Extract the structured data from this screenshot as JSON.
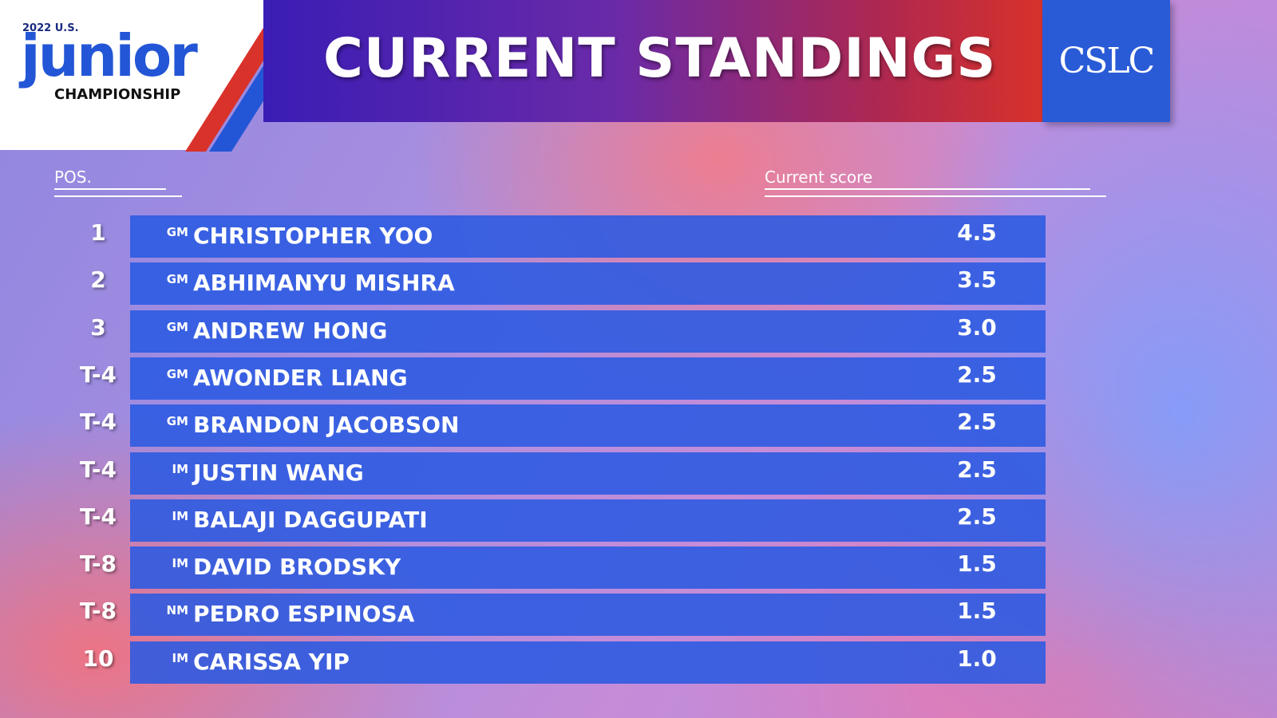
{
  "logo": {
    "year": "2022 U.S.",
    "name": "junior",
    "subtitle": "CHAMPIONSHIP"
  },
  "header": {
    "title": "CURRENT STANDINGS",
    "sponsor": "CSLC"
  },
  "columns": {
    "position": "POS.",
    "score": "Current score"
  },
  "rows": [
    {
      "pos": "1",
      "title": "GM",
      "name": "CHRISTOPHER YOO",
      "score": "4.5"
    },
    {
      "pos": "2",
      "title": "GM",
      "name": "ABHIMANYU MISHRA",
      "score": "3.5"
    },
    {
      "pos": "3",
      "title": "GM",
      "name": "ANDREW HONG",
      "score": "3.0"
    },
    {
      "pos": "T-4",
      "title": "GM",
      "name": "AWONDER LIANG",
      "score": "2.5"
    },
    {
      "pos": "T-4",
      "title": "GM",
      "name": "BRANDON JACOBSON",
      "score": "2.5"
    },
    {
      "pos": "T-4",
      "title": "IM",
      "name": "JUSTIN WANG",
      "score": "2.5"
    },
    {
      "pos": "T-4",
      "title": "IM",
      "name": "BALAJI DAGGUPATI",
      "score": "2.5"
    },
    {
      "pos": "T-8",
      "title": "IM",
      "name": "DAVID BRODSKY",
      "score": "1.5"
    },
    {
      "pos": "T-8",
      "title": "NM",
      "name": "PEDRO ESPINOSA",
      "score": "1.5"
    },
    {
      "pos": "10",
      "title": "IM",
      "name": "CARISSA YIP",
      "score": "1.0"
    }
  ]
}
